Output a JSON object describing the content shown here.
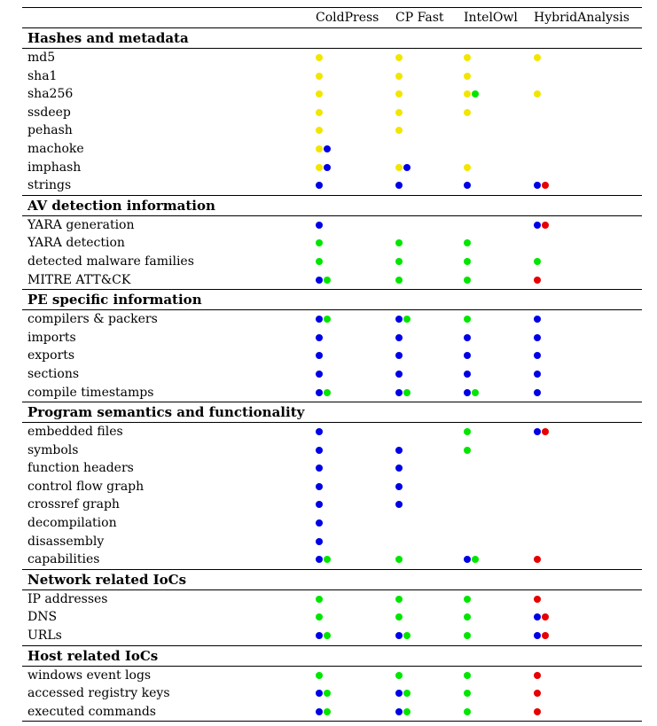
{
  "colors": {
    "yellow": "#f2e600",
    "blue": "#0000e6",
    "green": "#00e600",
    "red": "#e60000"
  },
  "columns": [
    "ColdPress",
    "CP Fast",
    "IntelOwl",
    "HybridAnalysis"
  ],
  "sections": [
    {
      "title": "Hashes and metadata",
      "rows": [
        {
          "label": "md5",
          "cells": [
            [
              "yellow"
            ],
            [
              "yellow"
            ],
            [
              "yellow"
            ],
            [
              "yellow"
            ]
          ]
        },
        {
          "label": "sha1",
          "cells": [
            [
              "yellow"
            ],
            [
              "yellow"
            ],
            [
              "yellow"
            ],
            []
          ]
        },
        {
          "label": "sha256",
          "cells": [
            [
              "yellow"
            ],
            [
              "yellow"
            ],
            [
              "yellow",
              "green"
            ],
            [
              "yellow"
            ]
          ]
        },
        {
          "label": "ssdeep",
          "cells": [
            [
              "yellow"
            ],
            [
              "yellow"
            ],
            [
              "yellow"
            ],
            []
          ]
        },
        {
          "label": "pehash",
          "cells": [
            [
              "yellow"
            ],
            [
              "yellow"
            ],
            [],
            []
          ]
        },
        {
          "label": "machoke",
          "cells": [
            [
              "yellow",
              "blue"
            ],
            [],
            [],
            []
          ]
        },
        {
          "label": "imphash",
          "cells": [
            [
              "yellow",
              "blue"
            ],
            [
              "yellow",
              "blue"
            ],
            [
              "yellow"
            ],
            []
          ]
        },
        {
          "label": "strings",
          "cells": [
            [
              "blue"
            ],
            [
              "blue"
            ],
            [
              "blue"
            ],
            [
              "blue",
              "red"
            ]
          ]
        }
      ]
    },
    {
      "title": "AV detection information",
      "rows": [
        {
          "label": "YARA generation",
          "cells": [
            [
              "blue"
            ],
            [],
            [],
            [
              "blue",
              "red"
            ]
          ]
        },
        {
          "label": "YARA detection",
          "cells": [
            [
              "green"
            ],
            [
              "green"
            ],
            [
              "green"
            ],
            []
          ]
        },
        {
          "label": "detected malware families",
          "cells": [
            [
              "green"
            ],
            [
              "green"
            ],
            [
              "green"
            ],
            [
              "green"
            ]
          ]
        },
        {
          "label": "MITRE ATT&CK",
          "cells": [
            [
              "blue",
              "green"
            ],
            [
              "green"
            ],
            [
              "green"
            ],
            [
              "red"
            ]
          ]
        }
      ]
    },
    {
      "title": "PE specific information",
      "rows": [
        {
          "label": "compilers & packers",
          "cells": [
            [
              "blue",
              "green"
            ],
            [
              "blue",
              "green"
            ],
            [
              "green"
            ],
            [
              "blue"
            ]
          ]
        },
        {
          "label": "imports",
          "cells": [
            [
              "blue"
            ],
            [
              "blue"
            ],
            [
              "blue"
            ],
            [
              "blue"
            ]
          ]
        },
        {
          "label": "exports",
          "cells": [
            [
              "blue"
            ],
            [
              "blue"
            ],
            [
              "blue"
            ],
            [
              "blue"
            ]
          ]
        },
        {
          "label": "sections",
          "cells": [
            [
              "blue"
            ],
            [
              "blue"
            ],
            [
              "blue"
            ],
            [
              "blue"
            ]
          ]
        },
        {
          "label": "compile timestamps",
          "cells": [
            [
              "blue",
              "green"
            ],
            [
              "blue",
              "green"
            ],
            [
              "blue",
              "green"
            ],
            [
              "blue"
            ]
          ]
        }
      ]
    },
    {
      "title": "Program semantics and functionality",
      "rows": [
        {
          "label": "embedded files",
          "cells": [
            [
              "blue"
            ],
            [],
            [
              "green"
            ],
            [
              "blue",
              "red"
            ]
          ]
        },
        {
          "label": "symbols",
          "cells": [
            [
              "blue"
            ],
            [
              "blue"
            ],
            [
              "green"
            ],
            []
          ]
        },
        {
          "label": "function headers",
          "cells": [
            [
              "blue"
            ],
            [
              "blue"
            ],
            [],
            []
          ]
        },
        {
          "label": "control flow graph",
          "cells": [
            [
              "blue"
            ],
            [
              "blue"
            ],
            [],
            []
          ]
        },
        {
          "label": "crossref graph",
          "cells": [
            [
              "blue"
            ],
            [
              "blue"
            ],
            [],
            []
          ]
        },
        {
          "label": "decompilation",
          "cells": [
            [
              "blue"
            ],
            [],
            [],
            []
          ]
        },
        {
          "label": "disassembly",
          "cells": [
            [
              "blue"
            ],
            [],
            [],
            []
          ]
        },
        {
          "label": "capabilities",
          "cells": [
            [
              "blue",
              "green"
            ],
            [
              "green"
            ],
            [
              "blue",
              "green"
            ],
            [
              "red"
            ]
          ]
        }
      ]
    },
    {
      "title": "Network related IoCs",
      "rows": [
        {
          "label": "IP addresses",
          "cells": [
            [
              "green"
            ],
            [
              "green"
            ],
            [
              "green"
            ],
            [
              "red"
            ]
          ]
        },
        {
          "label": "DNS",
          "cells": [
            [
              "green"
            ],
            [
              "green"
            ],
            [
              "green"
            ],
            [
              "blue",
              "red"
            ]
          ]
        },
        {
          "label": "URLs",
          "cells": [
            [
              "blue",
              "green"
            ],
            [
              "blue",
              "green"
            ],
            [
              "green"
            ],
            [
              "blue",
              "red"
            ]
          ]
        }
      ]
    },
    {
      "title": "Host related IoCs",
      "rows": [
        {
          "label": "windows event logs",
          "cells": [
            [
              "green"
            ],
            [
              "green"
            ],
            [
              "green"
            ],
            [
              "red"
            ]
          ]
        },
        {
          "label": "accessed registry keys",
          "cells": [
            [
              "blue",
              "green"
            ],
            [
              "blue",
              "green"
            ],
            [
              "green"
            ],
            [
              "red"
            ]
          ]
        },
        {
          "label": "executed commands",
          "cells": [
            [
              "blue",
              "green"
            ],
            [
              "blue",
              "green"
            ],
            [
              "green"
            ],
            [
              "red"
            ]
          ]
        }
      ]
    }
  ]
}
